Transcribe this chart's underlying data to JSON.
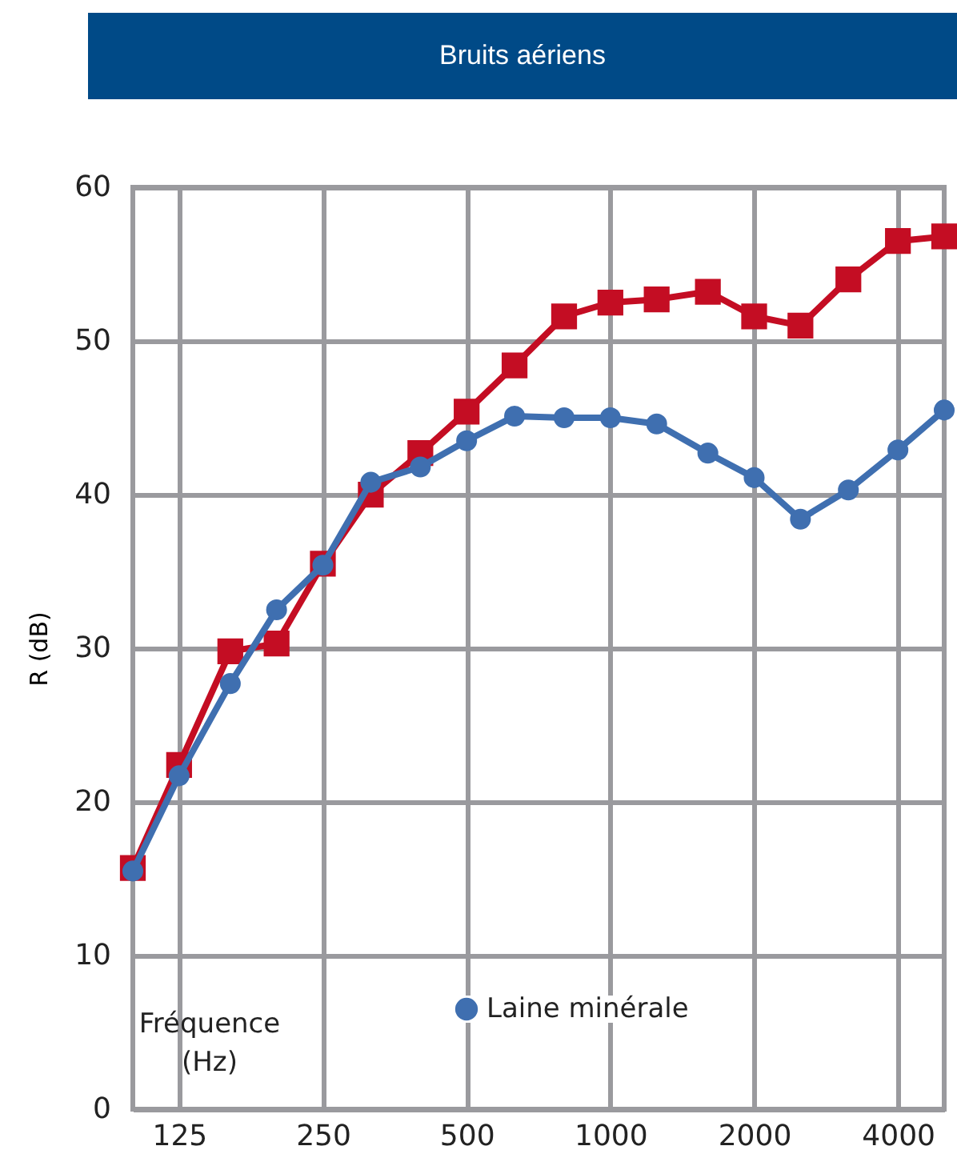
{
  "chart_data": {
    "type": "line",
    "title": "Bruits aériens",
    "xlabel": "Fréquence (Hz)",
    "ylabel": "R (dB)",
    "x": [
      100,
      125,
      160,
      200,
      250,
      315,
      400,
      500,
      630,
      800,
      1000,
      1250,
      1600,
      2000,
      2500,
      3150,
      4000,
      5000
    ],
    "series": [
      {
        "name": "Laine minérale",
        "color": "#3f6fb0",
        "marker": "circle",
        "values": [
          15.5,
          21.7,
          27.7,
          32.5,
          35.4,
          40.8,
          41.8,
          43.5,
          45.1,
          45.0,
          45.0,
          44.6,
          42.7,
          41.1,
          38.4,
          40.3,
          42.9,
          45.5
        ]
      },
      {
        "color": "#c40d23",
        "marker": "square",
        "values": [
          15.7,
          22.4,
          29.8,
          30.3,
          35.5,
          40.0,
          42.7,
          45.4,
          48.4,
          51.6,
          52.5,
          52.7,
          53.2,
          51.6,
          51.0,
          54.0,
          56.5,
          56.8
        ]
      }
    ],
    "log": "x",
    "xlim": [
      100,
      5000
    ],
    "xticks": [
      125,
      250,
      500,
      1000,
      2000,
      4000
    ],
    "ylim": [
      0,
      60
    ],
    "yticks": [
      0,
      10,
      20,
      30,
      40,
      50,
      60
    ],
    "grid": true,
    "legend": "bottom",
    "line_style": "solid"
  }
}
